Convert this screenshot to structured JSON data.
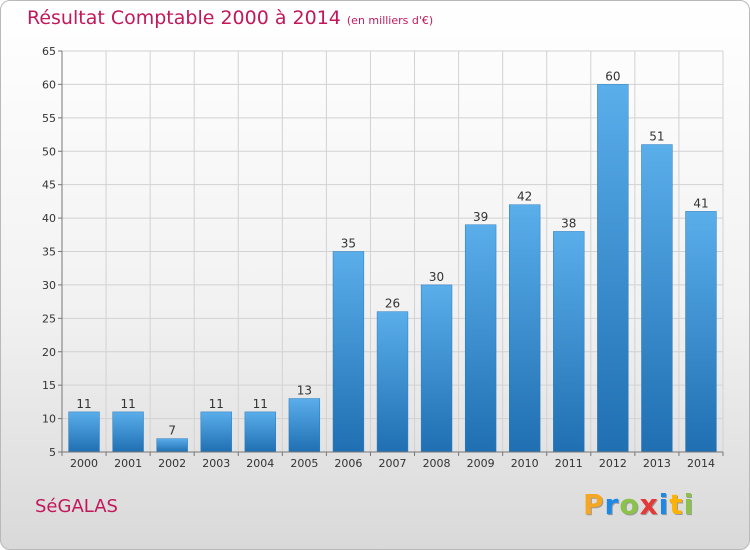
{
  "title": "Résultat Comptable 2000 à 2014",
  "subtitle": "(en milliers d'€)",
  "commune": "SéGALAS",
  "logo": {
    "letters": [
      "P",
      "r",
      "o",
      "x",
      "i",
      "t",
      "i"
    ],
    "colors": [
      "#f5a623",
      "#1e88e5",
      "#8bc34a",
      "#e53935",
      "#1e88e5",
      "#ffb300",
      "#8bc34a"
    ]
  },
  "colors": {
    "bar_light": "#5aaeea",
    "bar_dark": "#1f6fb2",
    "title": "#c2185b"
  },
  "chart_data": {
    "type": "bar",
    "title": "Résultat Comptable 2000 à 2014",
    "subtitle": "(en milliers d'€)",
    "categories": [
      "2000",
      "2001",
      "2002",
      "2003",
      "2004",
      "2005",
      "2006",
      "2007",
      "2008",
      "2009",
      "2010",
      "2011",
      "2012",
      "2013",
      "2014"
    ],
    "values": [
      11,
      11,
      7,
      11,
      11,
      13,
      35,
      26,
      30,
      39,
      42,
      38,
      60,
      51,
      41
    ],
    "ylim": [
      5,
      65
    ],
    "yticks": [
      5,
      10,
      15,
      20,
      25,
      30,
      35,
      40,
      45,
      50,
      55,
      60,
      65
    ],
    "grid": true,
    "xlabel": "",
    "ylabel": ""
  }
}
